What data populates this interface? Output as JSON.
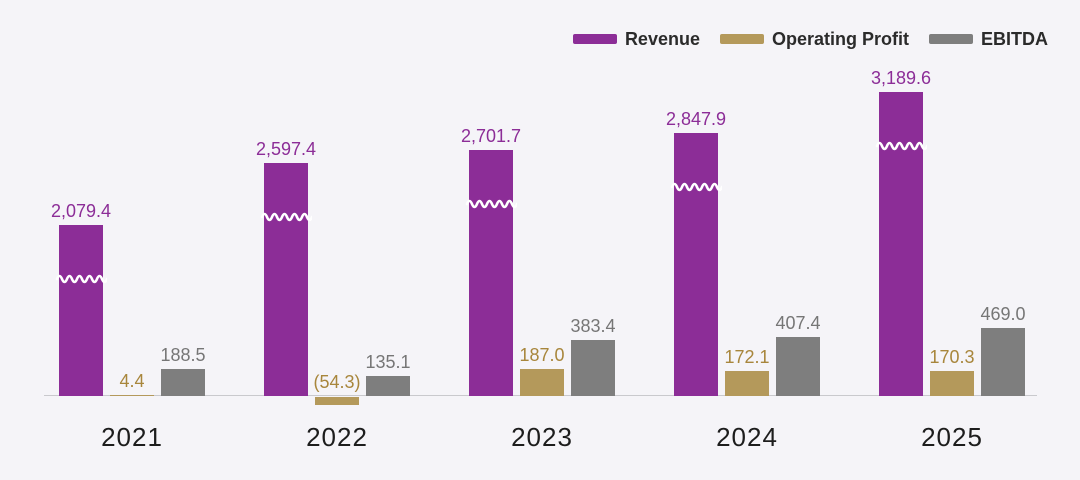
{
  "chart_data": {
    "type": "bar",
    "title": "",
    "categories": [
      "2021",
      "2022",
      "2023",
      "2024",
      "2025"
    ],
    "series": [
      {
        "name": "Revenue",
        "color": "#8C2D97",
        "label_color": "#8C2D97",
        "values": [
          2079.4,
          2597.4,
          2701.7,
          2847.9,
          3189.6
        ],
        "labels": [
          "2,079.4",
          "2,597.4",
          "2,701.7",
          "2,847.9",
          "3,189.6"
        ],
        "axis_break_marker": true
      },
      {
        "name": "Operating Profit",
        "color": "#B4995B",
        "label_color": "#A8863C",
        "values": [
          4.4,
          -54.3,
          187.0,
          172.1,
          170.3
        ],
        "labels": [
          "4.4",
          "(54.3)",
          "187.0",
          "172.1",
          "170.3"
        ]
      },
      {
        "name": "EBITDA",
        "color": "#7E7E7E",
        "label_color": "#767676",
        "values": [
          188.5,
          135.1,
          383.4,
          407.4,
          469.0
        ],
        "labels": [
          "188.5",
          "135.1",
          "383.4",
          "407.4",
          "469.0"
        ]
      }
    ],
    "xlabel": "",
    "ylabel": "",
    "legend_position": "top-right",
    "grid": false,
    "y_axis_visible": false,
    "negative_format": "parentheses",
    "notes": "Revenue bars are drawn with a white wavy axis-break marker; 2022 Operating Profit is negative and drawn below the baseline."
  },
  "colors": {
    "background": "#F5F4F8",
    "axis_line": "#C9C9CD",
    "year_label_text": "#1D1D1D",
    "legend_text": "#2B2B2B",
    "break_marker": "#FFFFFF"
  }
}
